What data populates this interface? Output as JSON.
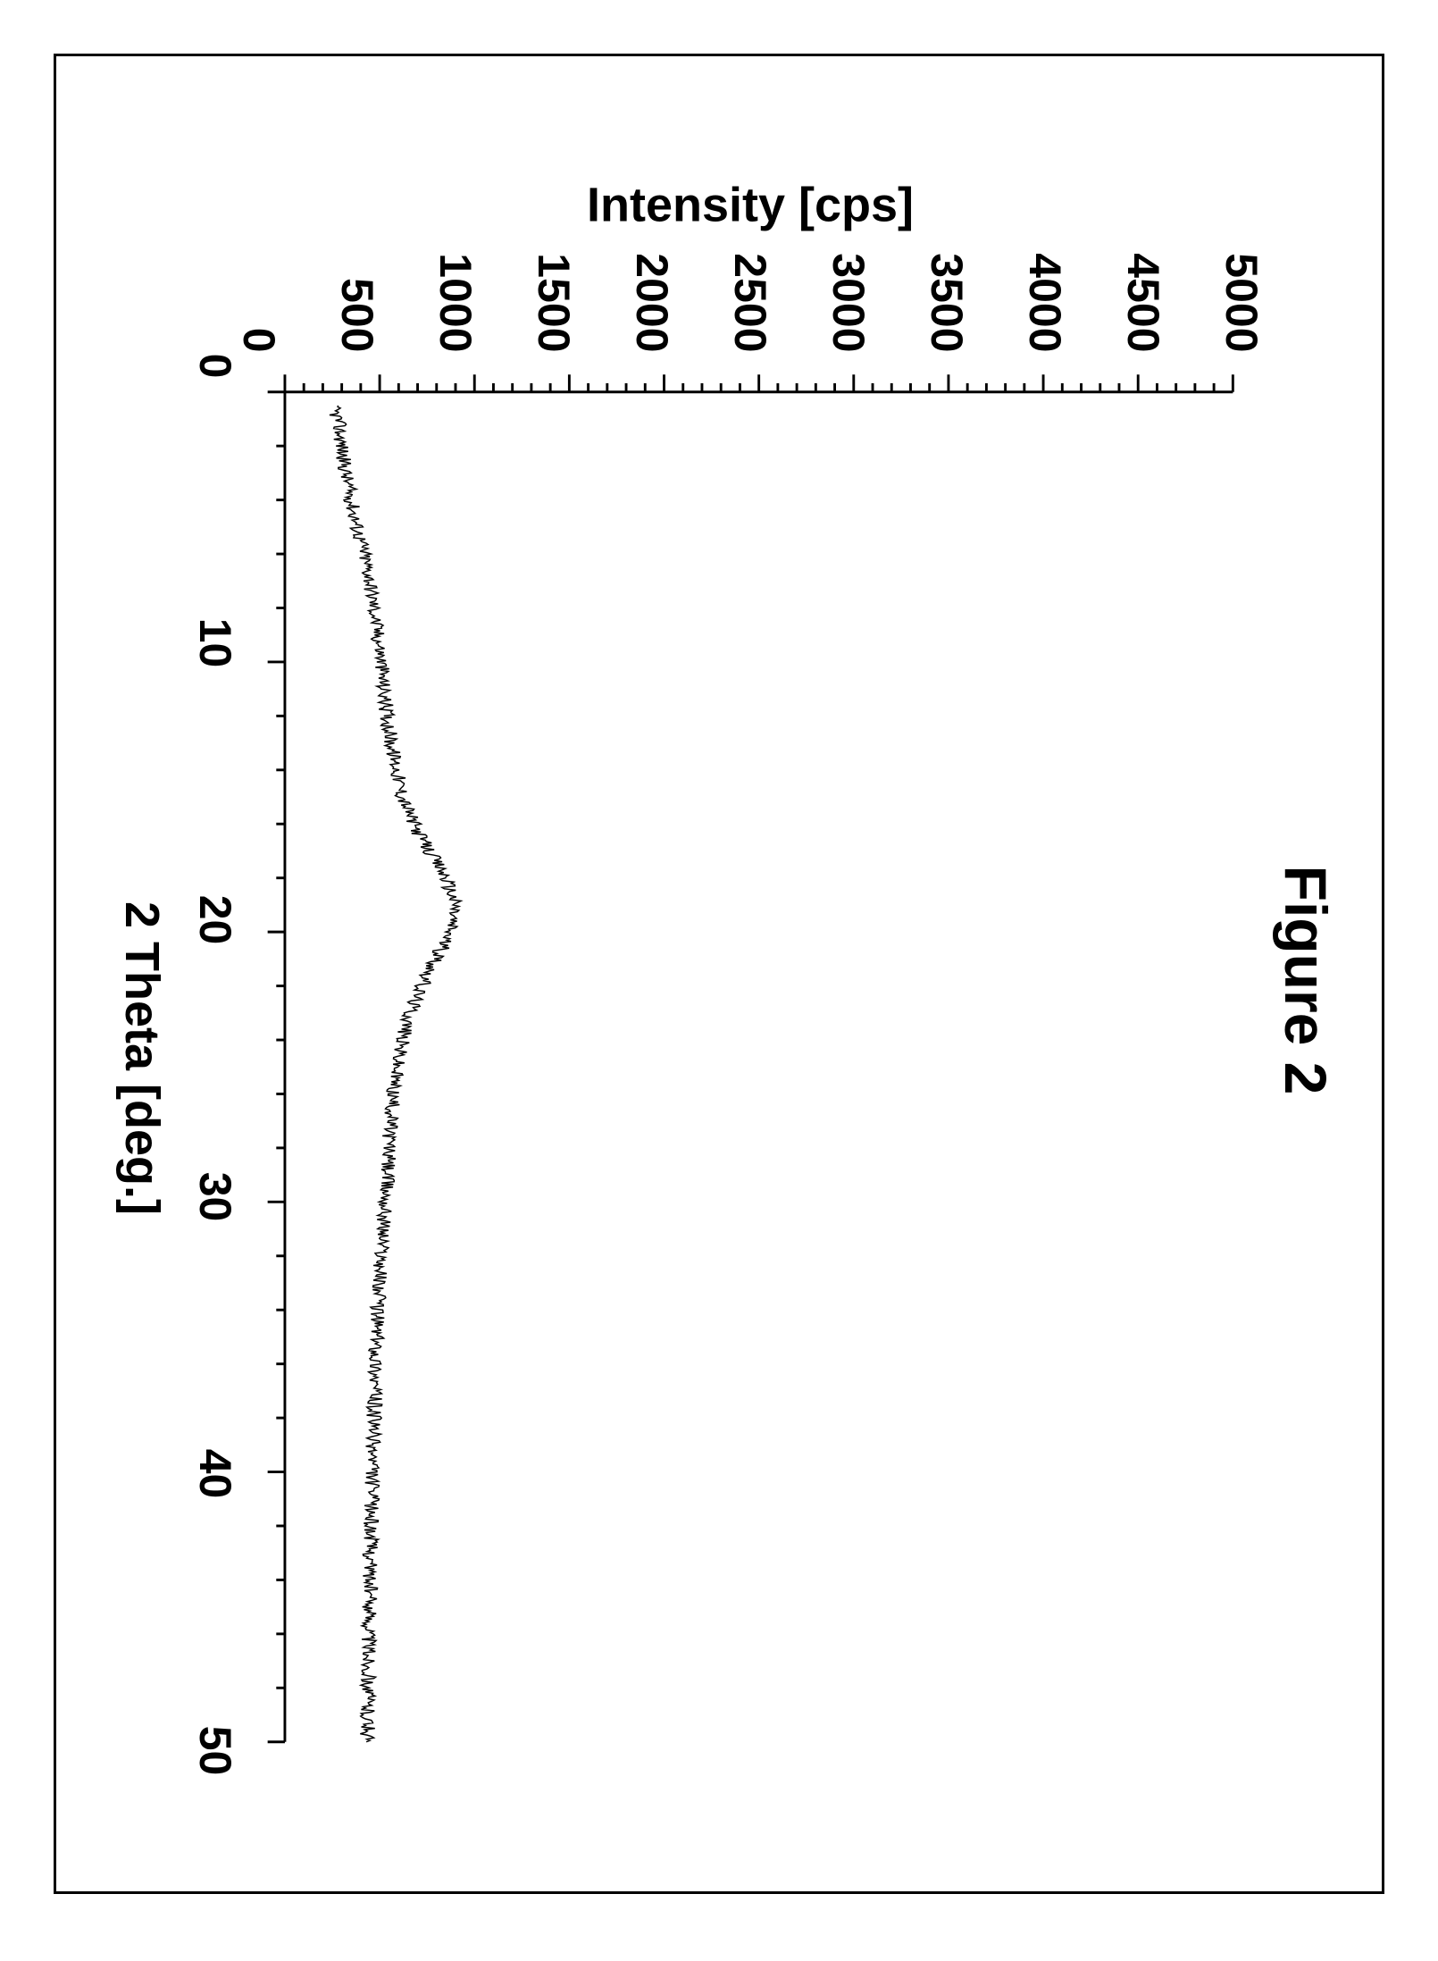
{
  "figure": {
    "title": "Figure 2",
    "title_fontsize": 66,
    "title_weight": "700",
    "xrd": {
      "type": "line",
      "xlabel": "2 Theta [deg.]",
      "ylabel": "Intensity [cps]",
      "label_fontsize": 54,
      "tick_fontsize": 50,
      "axis_color": "#000000",
      "line_color": "#000000",
      "background_color": "#ffffff",
      "xlim": [
        0,
        50
      ],
      "ylim": [
        0,
        5000
      ],
      "xticks": [
        0,
        10,
        20,
        30,
        40,
        50
      ],
      "yticks": [
        0,
        500,
        1000,
        1500,
        2000,
        2500,
        3000,
        3500,
        4000,
        4500,
        5000
      ],
      "x_minor_step": 2,
      "y_minor_step": 100,
      "line_width": 1.5,
      "noise_amplitude": 40,
      "series": [
        {
          "x": 0.5,
          "y": 250
        },
        {
          "x": 1,
          "y": 280
        },
        {
          "x": 2,
          "y": 300
        },
        {
          "x": 3,
          "y": 320
        },
        {
          "x": 4,
          "y": 350
        },
        {
          "x": 5,
          "y": 380
        },
        {
          "x": 6,
          "y": 420
        },
        {
          "x": 7,
          "y": 450
        },
        {
          "x": 8,
          "y": 470
        },
        {
          "x": 9,
          "y": 490
        },
        {
          "x": 10,
          "y": 510
        },
        {
          "x": 11,
          "y": 520
        },
        {
          "x": 12,
          "y": 540
        },
        {
          "x": 13,
          "y": 560
        },
        {
          "x": 14,
          "y": 590
        },
        {
          "x": 15,
          "y": 620
        },
        {
          "x": 16,
          "y": 680
        },
        {
          "x": 17,
          "y": 760
        },
        {
          "x": 18,
          "y": 850
        },
        {
          "x": 19,
          "y": 900
        },
        {
          "x": 20,
          "y": 870
        },
        {
          "x": 21,
          "y": 800
        },
        {
          "x": 22,
          "y": 720
        },
        {
          "x": 23,
          "y": 660
        },
        {
          "x": 24,
          "y": 620
        },
        {
          "x": 25,
          "y": 590
        },
        {
          "x": 26,
          "y": 570
        },
        {
          "x": 27,
          "y": 560
        },
        {
          "x": 28,
          "y": 550
        },
        {
          "x": 29,
          "y": 540
        },
        {
          "x": 30,
          "y": 530
        },
        {
          "x": 32,
          "y": 510
        },
        {
          "x": 34,
          "y": 490
        },
        {
          "x": 36,
          "y": 480
        },
        {
          "x": 38,
          "y": 470
        },
        {
          "x": 40,
          "y": 460
        },
        {
          "x": 42,
          "y": 455
        },
        {
          "x": 44,
          "y": 450
        },
        {
          "x": 46,
          "y": 445
        },
        {
          "x": 48,
          "y": 440
        },
        {
          "x": 50,
          "y": 435
        }
      ]
    }
  }
}
